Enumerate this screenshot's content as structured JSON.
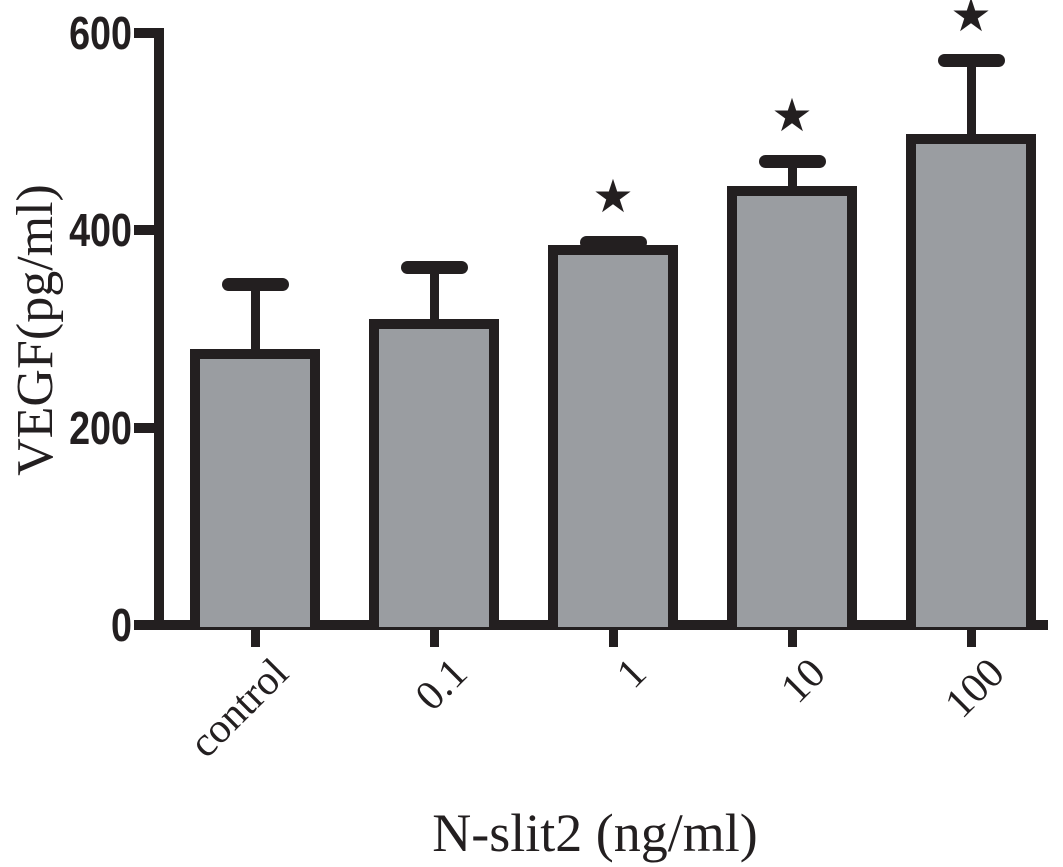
{
  "chart_data": {
    "type": "bar",
    "title": "",
    "xlabel": "N-slit2 (ng/ml)",
    "ylabel": "VEGF(pg/ml)",
    "categories": [
      "control",
      "0.1",
      "1",
      "10",
      "100"
    ],
    "values": [
      275,
      305,
      380,
      440,
      493
    ],
    "errors_up": [
      70,
      57,
      8,
      30,
      79
    ],
    "significance_markers": [
      "",
      "",
      "★",
      "★",
      "★"
    ],
    "ylim": [
      0,
      600
    ],
    "yticks": [
      0,
      200,
      400,
      600
    ],
    "grid": false,
    "legend": "none",
    "error_bar_direction": "up",
    "bar_fill_color": "#9a9da1",
    "line_color": "#231f20",
    "background_color": "#ffffff"
  }
}
